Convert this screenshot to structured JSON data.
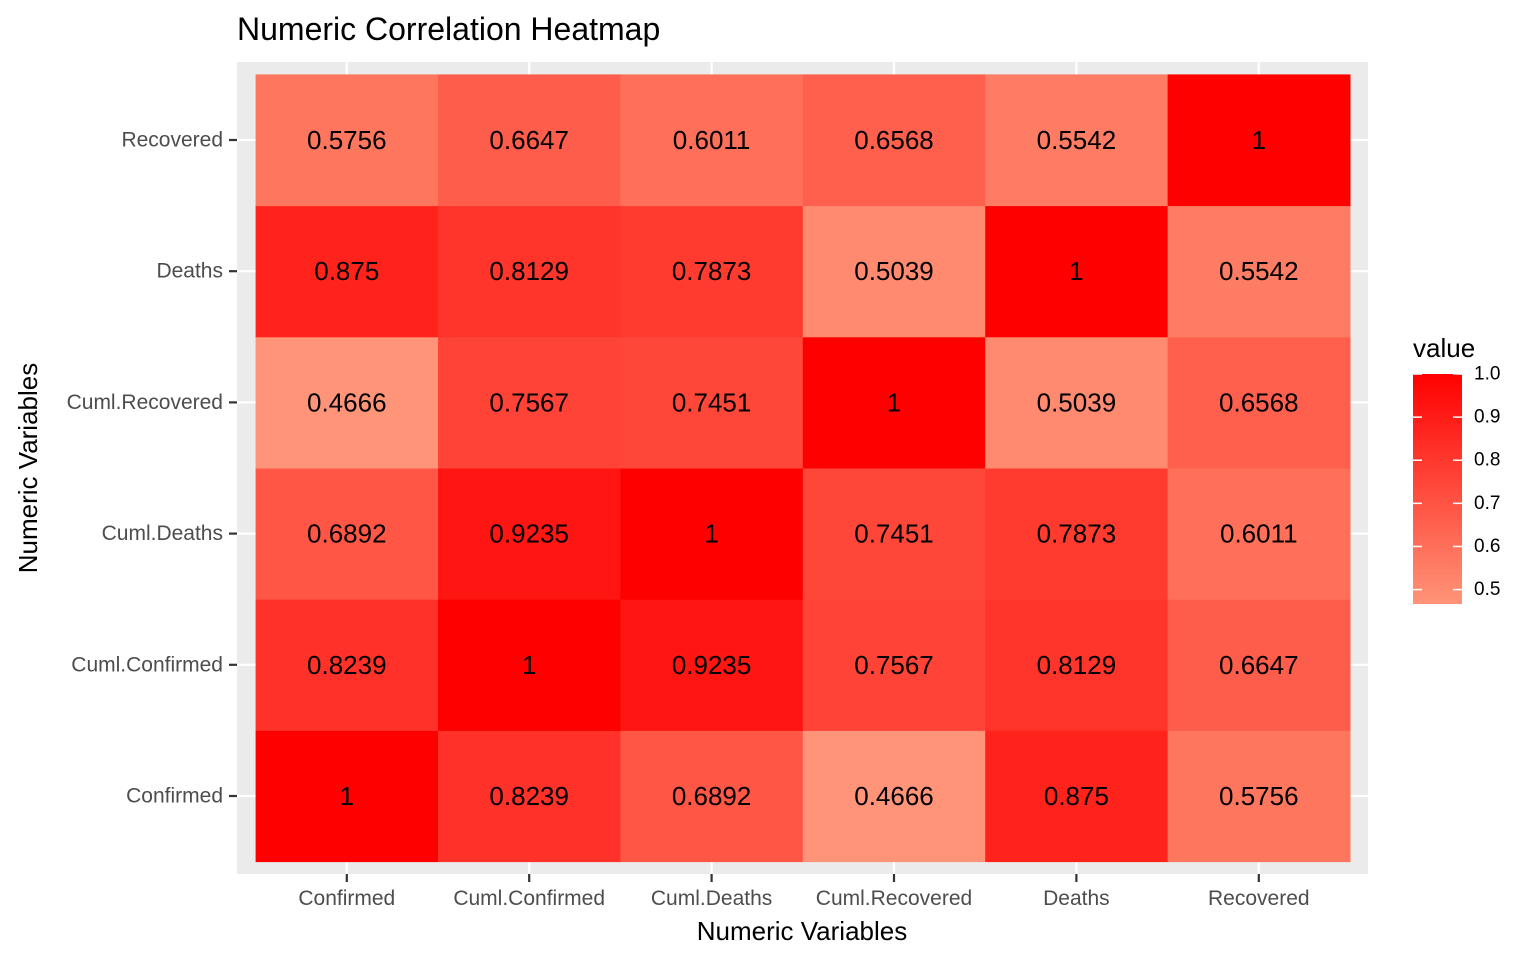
{
  "chart_data": {
    "type": "heatmap",
    "title": "Numeric Correlation Heatmap",
    "xlabel": "Numeric Variables",
    "ylabel": "Numeric Variables",
    "x_categories": [
      "Confirmed",
      "Cuml.Confirmed",
      "Cuml.Deaths",
      "Cuml.Recovered",
      "Deaths",
      "Recovered"
    ],
    "y_categories": [
      "Confirmed",
      "Cuml.Confirmed",
      "Cuml.Deaths",
      "Cuml.Recovered",
      "Deaths",
      "Recovered"
    ],
    "matrix": [
      [
        1,
        0.8239,
        0.6892,
        0.4666,
        0.875,
        0.5756
      ],
      [
        0.8239,
        1,
        0.9235,
        0.7567,
        0.8129,
        0.6647
      ],
      [
        0.6892,
        0.9235,
        1,
        0.7451,
        0.7873,
        0.6011
      ],
      [
        0.4666,
        0.7567,
        0.7451,
        1,
        0.5039,
        0.6568
      ],
      [
        0.875,
        0.8129,
        0.7873,
        0.5039,
        1,
        0.5542
      ],
      [
        0.5756,
        0.6647,
        0.6011,
        0.6568,
        0.5542,
        1
      ]
    ],
    "cell_labels": [
      [
        "1",
        "0.8239",
        "0.6892",
        "0.4666",
        "0.875",
        "0.5756"
      ],
      [
        "0.8239",
        "1",
        "0.9235",
        "0.7567",
        "0.8129",
        "0.6647"
      ],
      [
        "0.6892",
        "0.9235",
        "1",
        "0.7451",
        "0.7873",
        "0.6011"
      ],
      [
        "0.4666",
        "0.7567",
        "0.7451",
        "1",
        "0.5039",
        "0.6568"
      ],
      [
        "0.875",
        "0.8129",
        "0.7873",
        "0.5039",
        "1",
        "0.5542"
      ],
      [
        "0.5756",
        "0.6647",
        "0.6011",
        "0.6568",
        "0.5542",
        "1"
      ]
    ],
    "color_scale": {
      "low": "#FF9478",
      "high": "#FF0000",
      "min": 0.4666,
      "max": 1.0
    },
    "legend": {
      "title": "value",
      "placement": "right",
      "breaks": [
        0.5,
        0.6,
        0.7,
        0.8,
        0.9,
        1.0
      ],
      "labels": [
        "0.5",
        "0.6",
        "0.7",
        "0.8",
        "0.9",
        "1.0"
      ]
    },
    "panel_background": "#EBEBEB",
    "grid_color": "#FFFFFF",
    "grid": true
  }
}
